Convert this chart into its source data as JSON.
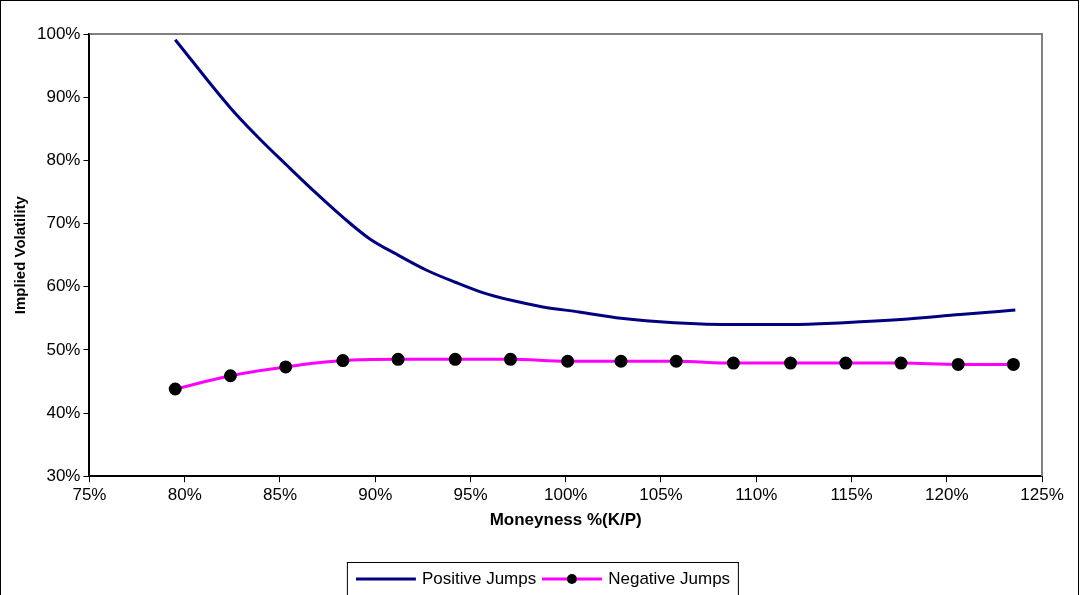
{
  "chart_data": {
    "type": "line",
    "xlabel": "Moneyness %(K/P)",
    "ylabel": "Implied Volatility",
    "xlim": [
      75,
      125
    ],
    "xticks": [
      {
        "value": 75,
        "label": "75%"
      },
      {
        "value": 80,
        "label": "80%"
      },
      {
        "value": 85,
        "label": "85%"
      },
      {
        "value": 90,
        "label": "90%"
      },
      {
        "value": 95,
        "label": "95%"
      },
      {
        "value": 100,
        "label": "100%"
      },
      {
        "value": 105,
        "label": "105%"
      },
      {
        "value": 110,
        "label": "110%"
      },
      {
        "value": 115,
        "label": "115%"
      },
      {
        "value": 120,
        "label": "120%"
      },
      {
        "value": 125,
        "label": "125%"
      }
    ],
    "ylim": [
      30,
      100
    ],
    "yticks": [
      {
        "value": 30,
        "label": "30%"
      },
      {
        "value": 40,
        "label": "40%"
      },
      {
        "value": 50,
        "label": "50%"
      },
      {
        "value": 60,
        "label": "60%"
      },
      {
        "value": 70,
        "label": "70%"
      },
      {
        "value": 80,
        "label": "80%"
      },
      {
        "value": 90,
        "label": "90%"
      },
      {
        "value": 100,
        "label": "100%"
      }
    ],
    "grid": false,
    "legend": "bottom",
    "line_style": "solid",
    "series": [
      {
        "name": "Positive Jumps",
        "color": "#000080",
        "marker": "none",
        "x": [
          79.5,
          82.4,
          83.9,
          85.4,
          86.9,
          88.3,
          89.7,
          91.2,
          92.7,
          94.2,
          95.6,
          97.2,
          98.8,
          100.7,
          102.9,
          105.7,
          109.0,
          111.8,
          114.6,
          117.6,
          120.7,
          123.6
        ],
        "values": [
          99.1,
          88.3,
          83.5,
          79.1,
          74.8,
          71.0,
          67.6,
          65.0,
          62.6,
          60.7,
          59.1,
          57.8,
          56.8,
          56.0,
          55.0,
          54.3,
          54.0,
          54.0,
          54.3,
          54.8,
          55.6,
          56.3
        ]
      },
      {
        "name": "Negative Jumps",
        "color": "#ff00ff",
        "marker": "circle",
        "x": [
          79.5,
          82.4,
          85.3,
          88.3,
          91.2,
          94.2,
          97.1,
          100.1,
          102.9,
          105.8,
          108.8,
          111.8,
          114.7,
          117.6,
          120.6,
          123.5
        ],
        "values": [
          43.8,
          45.9,
          47.3,
          48.3,
          48.5,
          48.5,
          48.5,
          48.2,
          48.2,
          48.2,
          47.9,
          47.9,
          47.9,
          47.9,
          47.7,
          47.7
        ]
      }
    ]
  }
}
